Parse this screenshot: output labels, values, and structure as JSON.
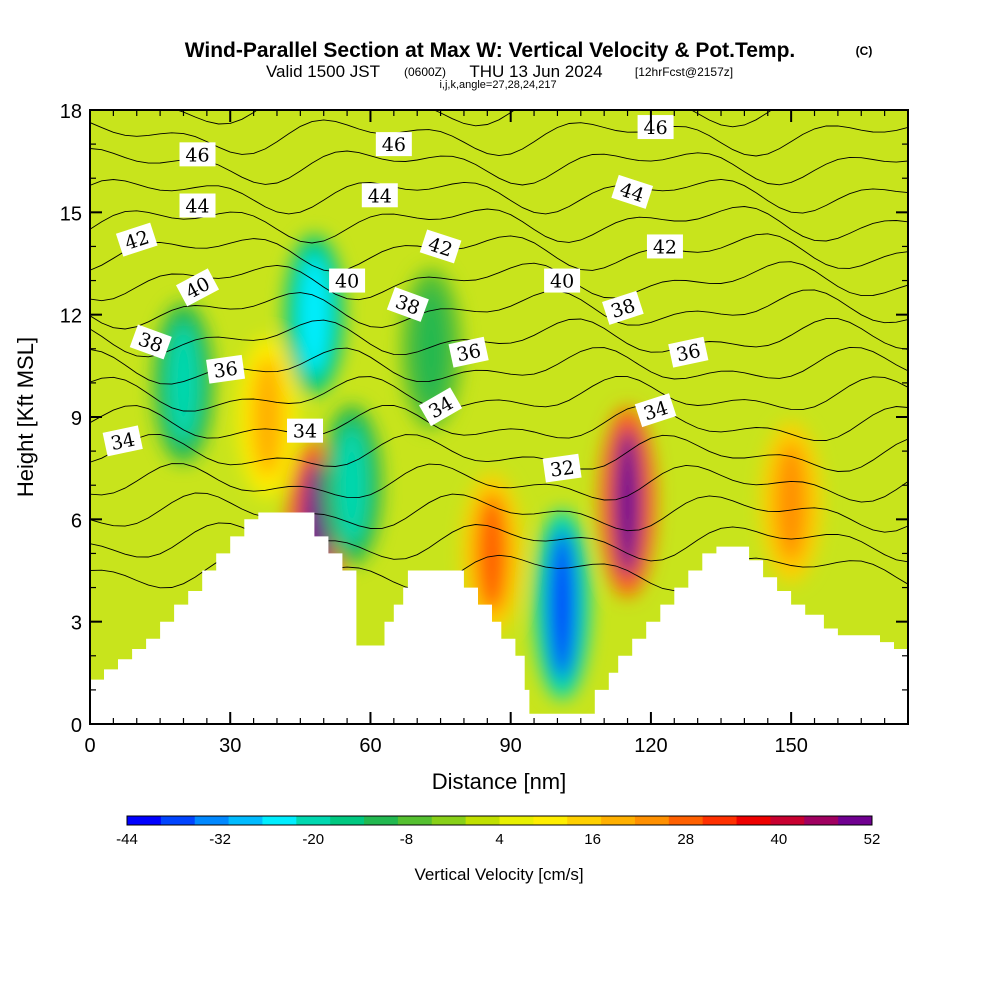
{
  "chart_data": {
    "type": "heatmap",
    "title": "Wind-Parallel Section at Max W: Vertical Velocity & Pot.Temp.",
    "title_suffix": "(C)",
    "subtitle_valid": "Valid 1500 JST",
    "subtitle_utc": "(0600Z)",
    "subtitle_date": "THU 13 Jun 2024",
    "subtitle_fcst": "[12hrFcst@2157z]",
    "subtitle_indices": "i,j,k,angle=27,28,24,217",
    "xlabel": "Distance [nm]",
    "ylabel": "Height [Kft MSL]",
    "xlim": [
      0,
      175
    ],
    "ylim": [
      0,
      18
    ],
    "x_ticks": [
      "0",
      "30",
      "60",
      "90",
      "120",
      "150"
    ],
    "y_ticks": [
      "0",
      "3",
      "6",
      "9",
      "12",
      "15",
      "18"
    ],
    "colorbar": {
      "label": "Vertical Velocity [cm/s]",
      "tick_labels": [
        "-44",
        "-32",
        "-20",
        "-8",
        "4",
        "16",
        "28",
        "40",
        "52"
      ],
      "colors": [
        "#0000ff",
        "#0044ff",
        "#0088ff",
        "#00bbff",
        "#00eeff",
        "#00d8b0",
        "#00c880",
        "#22b850",
        "#55c030",
        "#88d018",
        "#c0e000",
        "#e8f000",
        "#ffee00",
        "#ffd000",
        "#ffb000",
        "#ff9000",
        "#ff6000",
        "#ff3000",
        "#ee0000",
        "#c80030",
        "#a00060",
        "#700090"
      ]
    },
    "terrain_kft": [
      [
        0,
        1.3
      ],
      [
        3,
        1.6
      ],
      [
        6,
        1.9
      ],
      [
        9,
        2.2
      ],
      [
        12,
        2.5
      ],
      [
        15,
        3.0
      ],
      [
        18,
        3.5
      ],
      [
        21,
        3.9
      ],
      [
        24,
        4.5
      ],
      [
        27,
        5.0
      ],
      [
        30,
        5.5
      ],
      [
        33,
        6.0
      ],
      [
        36,
        6.2
      ],
      [
        40,
        6.2
      ],
      [
        45,
        6.2
      ],
      [
        48,
        5.5
      ],
      [
        51,
        5.0
      ],
      [
        54,
        4.5
      ],
      [
        57,
        2.3
      ],
      [
        60,
        2.3
      ],
      [
        63,
        3.0
      ],
      [
        65,
        3.5
      ],
      [
        67,
        4.0
      ],
      [
        68,
        4.5
      ],
      [
        72,
        4.5
      ],
      [
        77,
        4.5
      ],
      [
        80,
        4.0
      ],
      [
        83,
        3.5
      ],
      [
        86,
        3.0
      ],
      [
        88,
        2.5
      ],
      [
        91,
        2.0
      ],
      [
        93,
        1.0
      ],
      [
        94,
        0.3
      ],
      [
        100,
        0.3
      ],
      [
        107,
        0.3
      ],
      [
        108,
        1.0
      ],
      [
        111,
        1.5
      ],
      [
        113,
        2.0
      ],
      [
        116,
        2.5
      ],
      [
        119,
        3.0
      ],
      [
        122,
        3.5
      ],
      [
        125,
        4.0
      ],
      [
        128,
        4.5
      ],
      [
        131,
        5.0
      ],
      [
        134,
        5.2
      ],
      [
        138,
        5.2
      ],
      [
        141,
        4.8
      ],
      [
        144,
        4.3
      ],
      [
        147,
        3.9
      ],
      [
        150,
        3.5
      ],
      [
        153,
        3.2
      ],
      [
        157,
        2.8
      ],
      [
        160,
        2.6
      ],
      [
        166,
        2.6
      ],
      [
        169,
        2.4
      ],
      [
        172,
        2.2
      ],
      [
        175,
        2.0
      ]
    ],
    "w_cells": [
      {
        "x": 48,
        "z": 5.5,
        "w": 52
      },
      {
        "x": 115,
        "z": 6.5,
        "w": 52
      },
      {
        "x": 86,
        "z": 5.0,
        "w": 30
      },
      {
        "x": 150,
        "z": 6.5,
        "w": 26
      },
      {
        "x": 38,
        "z": 9.0,
        "w": 22
      },
      {
        "x": 101,
        "z": 3.5,
        "w": -40
      },
      {
        "x": 56,
        "z": 7.0,
        "w": -22
      },
      {
        "x": 48,
        "z": 12.0,
        "w": -28
      },
      {
        "x": 20,
        "z": 10.0,
        "w": -20
      },
      {
        "x": 73,
        "z": 11.0,
        "w": -14
      }
    ],
    "theta_contour_labels": [
      {
        "value": "46",
        "x": 23,
        "z": 16.7,
        "angle": 0
      },
      {
        "value": "46",
        "x": 65,
        "z": 17.0,
        "angle": 0
      },
      {
        "value": "46",
        "x": 121,
        "z": 17.5,
        "angle": 0
      },
      {
        "value": "44",
        "x": 23,
        "z": 15.2,
        "angle": 0
      },
      {
        "value": "44",
        "x": 62,
        "z": 15.5,
        "angle": 0
      },
      {
        "value": "44",
        "x": 116,
        "z": 15.6,
        "angle": 18
      },
      {
        "value": "42",
        "x": 10,
        "z": 14.2,
        "angle": -18
      },
      {
        "value": "42",
        "x": 75,
        "z": 14.0,
        "angle": 18
      },
      {
        "value": "42",
        "x": 123,
        "z": 14.0,
        "angle": 0
      },
      {
        "value": "40",
        "x": 23,
        "z": 12.8,
        "angle": -28
      },
      {
        "value": "40",
        "x": 55,
        "z": 13.0,
        "angle": 0
      },
      {
        "value": "40",
        "x": 101,
        "z": 13.0,
        "angle": 0
      },
      {
        "value": "38",
        "x": 13,
        "z": 11.2,
        "angle": 20
      },
      {
        "value": "38",
        "x": 68,
        "z": 12.3,
        "angle": 20
      },
      {
        "value": "38",
        "x": 114,
        "z": 12.2,
        "angle": -18
      },
      {
        "value": "36",
        "x": 29,
        "z": 10.4,
        "angle": -8
      },
      {
        "value": "36",
        "x": 81,
        "z": 10.9,
        "angle": -12
      },
      {
        "value": "36",
        "x": 128,
        "z": 10.9,
        "angle": -12
      },
      {
        "value": "34",
        "x": 7,
        "z": 8.3,
        "angle": -12
      },
      {
        "value": "34",
        "x": 46,
        "z": 8.6,
        "angle": 0
      },
      {
        "value": "34",
        "x": 75,
        "z": 9.3,
        "angle": -30
      },
      {
        "value": "34",
        "x": 121,
        "z": 9.2,
        "angle": -18
      },
      {
        "value": "32",
        "x": 101,
        "z": 7.5,
        "angle": -8
      }
    ]
  }
}
